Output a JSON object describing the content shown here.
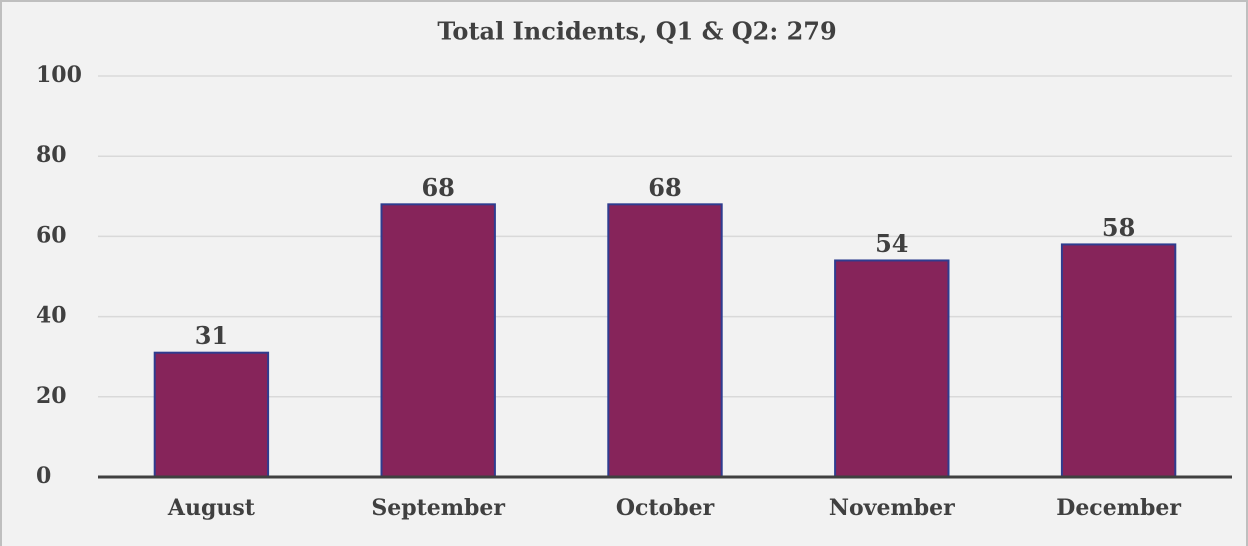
{
  "chart_data": {
    "type": "bar",
    "title": "Total Incidents, Q1 & Q2:  279",
    "categories": [
      "August",
      "September",
      "October",
      "November",
      "December"
    ],
    "values": [
      31,
      68,
      68,
      54,
      58
    ],
    "color": "#86245a",
    "edgecolor": "#2f3c8f",
    "ylim": [
      0,
      100
    ],
    "yticks": [
      0,
      20,
      40,
      60,
      80,
      100
    ],
    "grid": true
  }
}
